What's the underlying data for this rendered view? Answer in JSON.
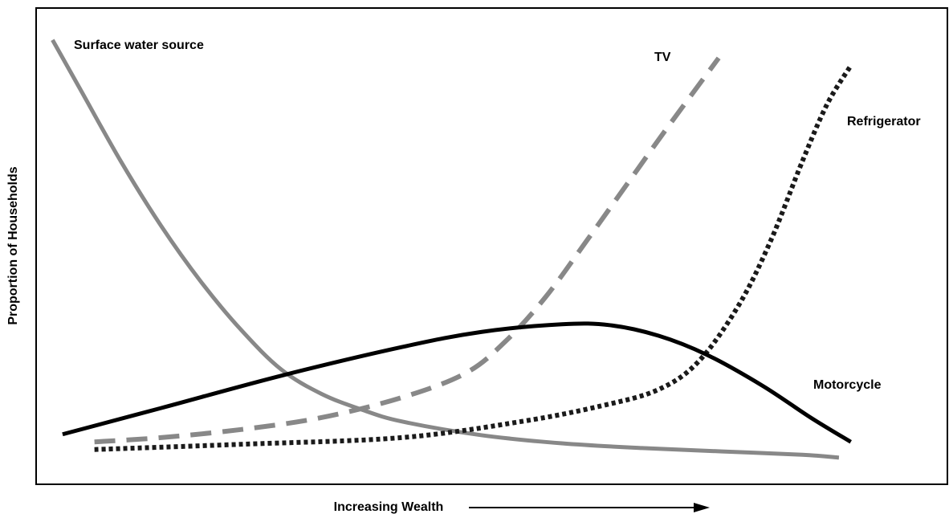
{
  "chart_data": {
    "type": "line",
    "xlabel": "Increasing Wealth",
    "ylabel": "Proportion of Households",
    "xlim": [
      0,
      100
    ],
    "ylim": [
      0,
      100
    ],
    "series": [
      {
        "name": "Surface water source",
        "color": "#888888",
        "dash": "solid",
        "x": [
          1.8,
          4.8,
          9.3,
          13.7,
          18.1,
          22.5,
          26.9,
          31.3,
          35.7,
          40.1,
          48.9,
          57.7,
          66.5,
          75.3,
          84.1,
          88.1
        ],
        "values": [
          93.3,
          83.1,
          67.8,
          54.3,
          42.5,
          32.4,
          24.1,
          19.0,
          15.7,
          13.2,
          10.3,
          8.6,
          7.6,
          6.9,
          6.2,
          5.6
        ]
      },
      {
        "name": "TV",
        "color": "#888888",
        "dash": "dashed",
        "x": [
          6.4,
          13.7,
          22.5,
          31.3,
          40.1,
          47.1,
          51.5,
          55.9,
          60.4,
          64.8,
          69.2,
          74.9
        ],
        "values": [
          8.9,
          9.8,
          11.5,
          14.0,
          18.2,
          23.3,
          30.0,
          39.3,
          51.1,
          62.9,
          74.7,
          89.5
        ]
      },
      {
        "name": "Refrigerator",
        "color": "#1a1a1a",
        "dash": "dotted",
        "x": [
          6.4,
          22.5,
          40.1,
          53.3,
          62.1,
          68.3,
          72.7,
          77.1,
          80.6,
          84.1,
          86.8,
          89.4
        ],
        "values": [
          7.3,
          8.4,
          9.8,
          13.2,
          16.5,
          19.9,
          25.8,
          37.6,
          51.1,
          67.9,
          79.8,
          87.9
        ]
      },
      {
        "name": "Motorcycle",
        "color": "#000000",
        "dash": "solid",
        "x": [
          2.9,
          13.7,
          26.9,
          40.1,
          48.9,
          57.7,
          63.0,
          68.3,
          73.6,
          79.7,
          85.0,
          89.4
        ],
        "values": [
          10.5,
          16.0,
          22.8,
          28.8,
          32.0,
          33.6,
          33.4,
          31.2,
          27.2,
          20.7,
          14.0,
          8.9
        ]
      }
    ]
  }
}
